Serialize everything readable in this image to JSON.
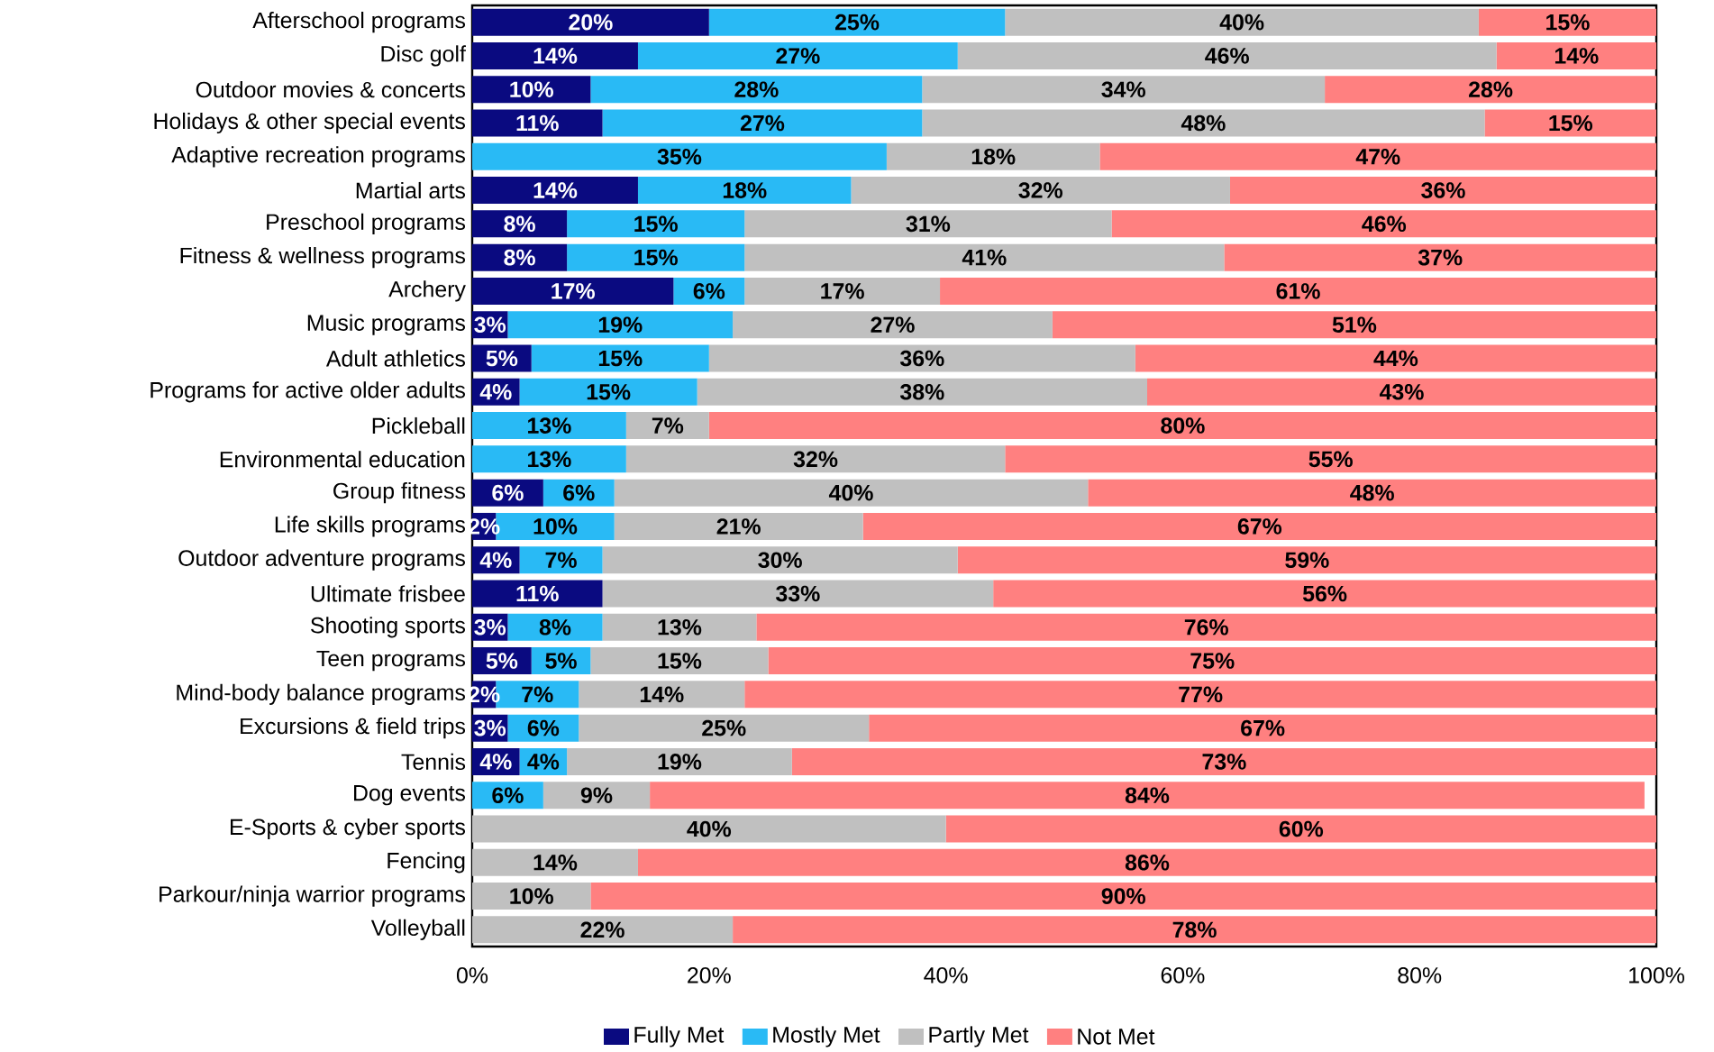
{
  "chart_data": {
    "type": "bar",
    "orientation": "horizontal",
    "stacked": true,
    "legend": "bottom",
    "grid": false,
    "categories": [
      "Afterschool programs",
      "Disc golf",
      "Outdoor movies & concerts",
      "Holidays & other special events",
      "Adaptive recreation programs",
      "Martial arts",
      "Preschool programs",
      "Fitness & wellness programs",
      "Archery",
      "Music programs",
      "Adult athletics",
      "Programs for active older adults",
      "Pickleball",
      "Environmental education",
      "Group fitness",
      "Life skills programs",
      "Outdoor adventure programs",
      "Ultimate frisbee",
      "Shooting sports",
      "Teen programs",
      "Mind-body balance programs",
      "Excursions & field trips",
      "Tennis",
      "Dog events",
      "E-Sports & cyber sports",
      "Fencing",
      "Parkour/ninja warrior programs",
      "Volleyball"
    ],
    "xlim": [
      0,
      100
    ],
    "xticks": [
      {
        "value": 0,
        "label": "0%"
      },
      {
        "value": 20,
        "label": "20%"
      },
      {
        "value": 40,
        "label": "40%"
      },
      {
        "value": 60,
        "label": "60%"
      },
      {
        "value": 80,
        "label": "80%"
      },
      {
        "value": 100,
        "label": "100%"
      }
    ],
    "series": [
      {
        "name": "Fully Met",
        "color": "#0a0a80",
        "values": [
          20,
          14,
          10,
          11,
          0,
          14,
          8,
          8,
          17,
          3,
          5,
          4,
          0,
          0,
          6,
          2,
          4,
          11,
          3,
          5,
          2,
          3,
          4,
          0,
          0,
          0,
          0,
          0
        ],
        "value_labels": [
          "20%",
          "14%",
          "10%",
          "11%",
          null,
          "14%",
          "8%",
          "8%",
          "17%",
          "3%",
          "5%",
          "4%",
          null,
          null,
          "6%",
          "2%",
          "4%",
          "11%",
          "3%",
          "5%",
          "2%",
          "3%",
          "4%",
          null,
          null,
          null,
          null,
          null
        ]
      },
      {
        "name": "Mostly Met",
        "color": "#29baf5",
        "values": [
          25,
          27,
          28,
          27,
          35,
          18,
          15,
          15,
          6,
          19,
          15,
          15,
          13,
          13,
          6,
          10,
          7,
          0,
          8,
          5,
          7,
          6,
          4,
          6,
          0,
          0,
          0,
          0
        ],
        "value_labels": [
          "25%",
          "27%",
          "28%",
          "27%",
          "35%",
          "18%",
          "15%",
          "15%",
          "6%",
          "19%",
          "15%",
          "15%",
          "13%",
          "13%",
          "6%",
          "10%",
          "7%",
          null,
          "8%",
          "5%",
          "7%",
          "6%",
          "4%",
          "6%",
          null,
          null,
          null,
          null
        ]
      },
      {
        "name": "Partly Met",
        "color": "#c0c0c0",
        "values": [
          40,
          45.5,
          34,
          47.5,
          18,
          32,
          31,
          40.5,
          16.5,
          27,
          36,
          38,
          7,
          32,
          40,
          21,
          30,
          33,
          13,
          15,
          14,
          24.5,
          19,
          9,
          40,
          14,
          10,
          22
        ],
        "value_labels": [
          "40%",
          "46%",
          "34%",
          "48%",
          "18%",
          "32%",
          "31%",
          "41%",
          "17%",
          "27%",
          "36%",
          "38%",
          "7%",
          "32%",
          "40%",
          "21%",
          "30%",
          "33%",
          "13%",
          "15%",
          "14%",
          "25%",
          "19%",
          "9%",
          "40%",
          "14%",
          "10%",
          "22%"
        ]
      },
      {
        "name": "Not Met",
        "color": "#ff8080",
        "values": [
          15,
          13.5,
          28,
          14.5,
          47,
          36,
          46,
          36.5,
          60.5,
          51,
          44,
          43,
          80,
          55,
          48,
          67,
          59,
          56,
          76,
          75,
          77,
          66.5,
          73,
          84,
          60,
          86,
          90,
          78
        ],
        "value_labels": [
          "15%",
          "14%",
          "28%",
          "15%",
          "47%",
          "36%",
          "46%",
          "37%",
          "61%",
          "51%",
          "44%",
          "43%",
          "80%",
          "55%",
          "48%",
          "67%",
          "59%",
          "56%",
          "76%",
          "75%",
          "77%",
          "67%",
          "73%",
          "84%",
          "60%",
          "86%",
          "90%",
          "78%"
        ]
      }
    ]
  }
}
